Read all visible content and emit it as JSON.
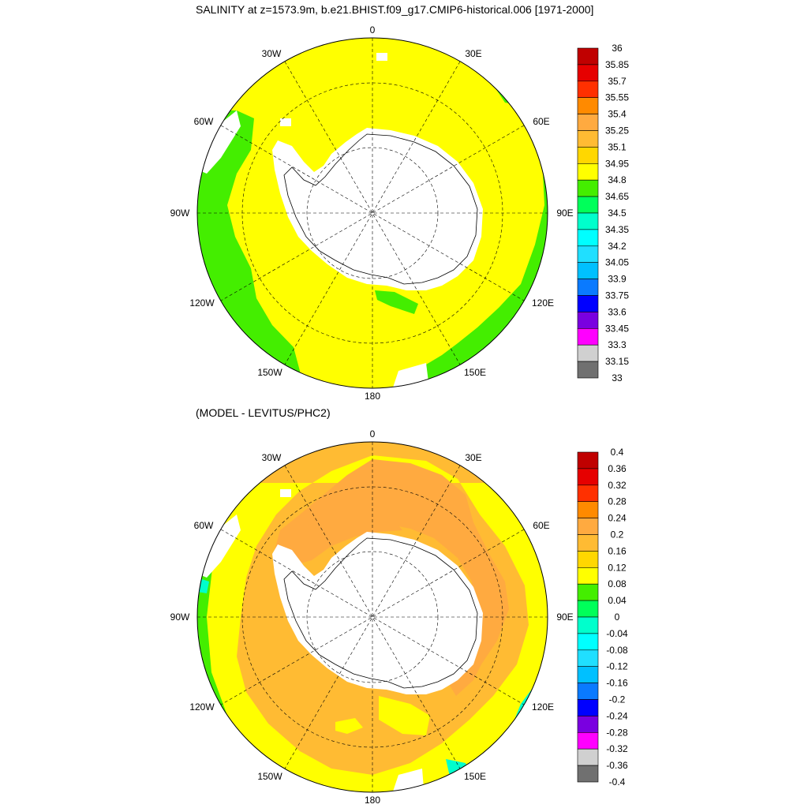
{
  "titles": {
    "main": "SALINITY at z=1573.9m, b.e21.BHIST.f09_g17.CMIP6-historical.006 [1971-2000]",
    "sub": "(MODEL - LEVITUS/PHC2)"
  },
  "longitude_labels": [
    "0",
    "30E",
    "60E",
    "90E",
    "120E",
    "150E",
    "180",
    "150W",
    "120W",
    "90W",
    "60W",
    "30W"
  ],
  "colors": {
    "land": "#ffffff",
    "coast": "#000000",
    "grid": "#000000",
    "colorbar_outline": "#000000"
  },
  "panel_top": {
    "colorbar": {
      "labels": [
        "36",
        "35.85",
        "35.7",
        "35.55",
        "35.4",
        "35.25",
        "35.1",
        "34.95",
        "34.8",
        "34.65",
        "34.5",
        "34.35",
        "34.2",
        "34.05",
        "33.9",
        "33.75",
        "33.6",
        "33.45",
        "33.3",
        "33.15",
        "33"
      ],
      "colors": [
        "#c00000",
        "#e60000",
        "#ff3000",
        "#ff8a00",
        "#ffaa40",
        "#ffbb33",
        "#ffd700",
        "#ffff00",
        "#44ee00",
        "#00ff5a",
        "#00ffcc",
        "#00ffff",
        "#20dfff",
        "#00c0ff",
        "#0a7aff",
        "#0000ff",
        "#7a00e0",
        "#ff00ff",
        "#d0d0d0",
        "#707070"
      ]
    }
  },
  "panel_bottom": {
    "colorbar": {
      "labels": [
        "0.4",
        "0.36",
        "0.32",
        "0.28",
        "0.24",
        "0.2",
        "0.16",
        "0.12",
        "0.08",
        "0.04",
        "0",
        "-0.04",
        "-0.08",
        "-0.12",
        "-0.16",
        "-0.2",
        "-0.24",
        "-0.28",
        "-0.32",
        "-0.36",
        "-0.4"
      ],
      "colors": [
        "#c00000",
        "#e60000",
        "#ff3000",
        "#ff8a00",
        "#ffaa40",
        "#ffbb33",
        "#ffd700",
        "#ffff00",
        "#44ee00",
        "#00ff5a",
        "#00ffcc",
        "#00ffff",
        "#20dfff",
        "#00c0ff",
        "#0a7aff",
        "#0000ff",
        "#7a00e0",
        "#ff00ff",
        "#d0d0d0",
        "#707070"
      ]
    }
  },
  "fields": {
    "top": {
      "base": "#ffff00",
      "outer_band": "#44ee00",
      "east_band": "#44ee00"
    },
    "bottom": {
      "base": "#ffbb33",
      "inner_band": "#ffaa40",
      "mid_band": "#ffd700",
      "outer_band": "#ffff00",
      "rim": "#44ee00",
      "edge": "#00ffcc"
    }
  }
}
